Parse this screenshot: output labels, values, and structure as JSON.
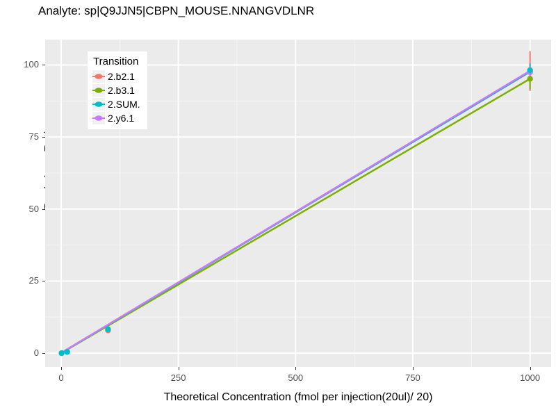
{
  "title": "Analyte: sp|Q9JJN5|CBPN_MOUSE.NNANGVDLNR",
  "chart_data": {
    "type": "line",
    "title": "Analyte: sp|Q9JJN5|CBPN_MOUSE.NNANGVDLNR",
    "xlabel": "Theoretical Concentration (fmol per injection(20ul)/ 20)",
    "ylabel": "Peak Area Ratio",
    "x_ticks": [
      0,
      250,
      500,
      750,
      1000
    ],
    "y_ticks": [
      0,
      25,
      50,
      75,
      100
    ],
    "x_minor_gridlines": [
      125,
      375,
      625,
      875
    ],
    "y_minor_gridlines": [
      12.5,
      37.5,
      62.5,
      87.5
    ],
    "xlim": [
      -34,
      1045
    ],
    "ylim": [
      -4.8,
      108.8
    ],
    "grid": "on",
    "panel_background": "#EBEBEB",
    "gridline_color": "#FFFFFF",
    "tick_label_color": "#4D4D4D",
    "legend": {
      "title": "Transition",
      "position": "inside-top-left"
    },
    "series": [
      {
        "name": "2.b2.1",
        "color": "#F8766D",
        "point_z": 1,
        "line": [
          [
            0,
            0.05
          ],
          [
            1000,
            97.6
          ]
        ],
        "points": [
          [
            100,
            7.9
          ],
          [
            1000,
            97.8
          ]
        ],
        "error_bars": [
          {
            "x": 1000,
            "ymin": 91.0,
            "ymax": 104.8
          }
        ]
      },
      {
        "name": "2.b3.1",
        "color": "#7CAE00",
        "point_z": 2,
        "line": [
          [
            0,
            0.0
          ],
          [
            1000,
            95.2
          ]
        ],
        "points": [
          [
            1000,
            95.2
          ]
        ],
        "error_bars": [
          {
            "x": 1000,
            "ymin": 91.5,
            "ymax": 98.5
          }
        ]
      },
      {
        "name": "2.SUM.",
        "color": "#00BFC4",
        "point_z": 4,
        "line": [
          [
            0,
            0.05
          ],
          [
            1000,
            97.7
          ]
        ],
        "points": [
          [
            1,
            0.0
          ],
          [
            13,
            0.4
          ],
          [
            100,
            8.3
          ],
          [
            1000,
            98.2
          ]
        ],
        "error_bars": [
          {
            "x": 1000,
            "ymin": 94.5,
            "ymax": 100.5
          }
        ]
      },
      {
        "name": "2.y6.1",
        "color": "#C77CFF",
        "point_z": 3,
        "line": [
          [
            0,
            0.1
          ],
          [
            1000,
            98.0
          ]
        ],
        "points": [
          [
            1000,
            97.5
          ]
        ],
        "error_bars": [
          {
            "x": 1000,
            "ymin": 95.0,
            "ymax": 99.5
          }
        ]
      }
    ]
  }
}
